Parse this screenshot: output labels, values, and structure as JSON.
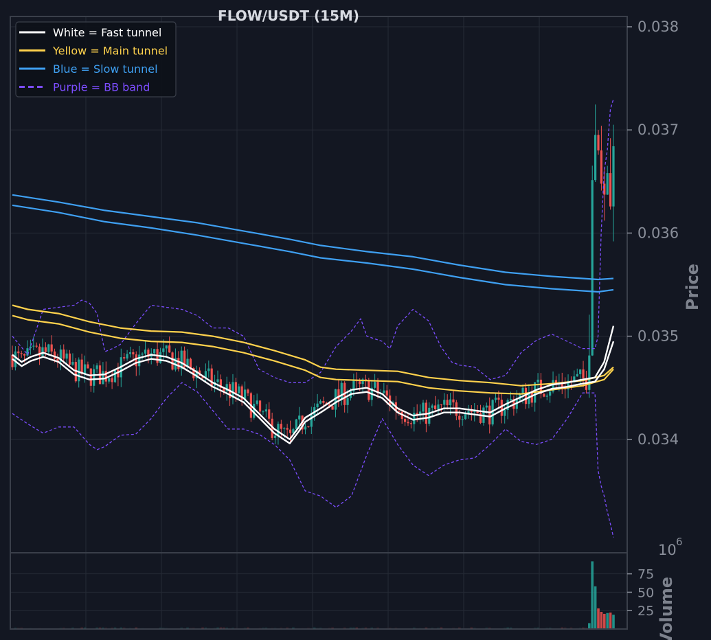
{
  "chart_data": {
    "type": "candlestick",
    "title": "FLOW/USDT (15M)",
    "ylabel": "Price",
    "volume_label": "Volume",
    "volume_exponent_base": "10",
    "volume_exponent_power": "6",
    "ylim": [
      0.0329,
      0.0381
    ],
    "volume_ylim": [
      0,
      98
    ],
    "n_bars": 200,
    "y_ticks": [
      "0.034",
      "0.035",
      "0.036",
      "0.037",
      "0.038"
    ],
    "y_tick_values": [
      0.034,
      0.035,
      0.036,
      0.037,
      0.038
    ],
    "volume_ticks": [
      "25",
      "50",
      "75"
    ],
    "volume_tick_values": [
      25,
      50,
      75
    ],
    "grid": true,
    "legend_position": "top-left",
    "legend": [
      {
        "label": "White = Fast tunnel",
        "color": "#ffffff",
        "style": "solid"
      },
      {
        "label": "Yellow = Main tunnel",
        "color": "#ffd24d",
        "style": "solid"
      },
      {
        "label": "Blue = Slow tunnel",
        "color": "#3fa0f2",
        "style": "solid"
      },
      {
        "label": "Purple = BB band",
        "color": "#7c4dff",
        "style": "dashed"
      }
    ],
    "colors": {
      "up": "#26a69a",
      "down": "#ef5350",
      "bg": "#131722",
      "grid": "#262b36",
      "frame": "#3a3f4a"
    },
    "tunnel_lines": {
      "fast": {
        "color": "#ffffff",
        "upper": [
          [
            0,
            0.03482
          ],
          [
            6,
            0.03475
          ],
          [
            12,
            0.0348
          ],
          [
            20,
            0.03484
          ],
          [
            30,
            0.03479
          ],
          [
            40,
            0.03467
          ],
          [
            50,
            0.03462
          ],
          [
            60,
            0.03463
          ],
          [
            70,
            0.0347
          ],
          [
            80,
            0.03478
          ],
          [
            90,
            0.03482
          ],
          [
            100,
            0.0348
          ],
          [
            110,
            0.03474
          ],
          [
            120,
            0.03465
          ],
          [
            130,
            0.03455
          ],
          [
            140,
            0.03448
          ],
          [
            150,
            0.0344
          ],
          [
            160,
            0.03425
          ],
          [
            170,
            0.0341
          ],
          [
            180,
            0.034
          ],
          [
            186,
            0.03412
          ],
          [
            190,
            0.03421
          ],
          [
            200,
            0.0343
          ],
          [
            210,
            0.0344
          ],
          [
            220,
            0.03448
          ],
          [
            230,
            0.0345
          ],
          [
            240,
            0.03444
          ],
          [
            250,
            0.0343
          ],
          [
            260,
            0.03423
          ],
          [
            270,
            0.03425
          ],
          [
            280,
            0.0343
          ],
          [
            290,
            0.0343
          ],
          [
            300,
            0.03428
          ],
          [
            310,
            0.03426
          ],
          [
            320,
            0.03434
          ],
          [
            330,
            0.03441
          ],
          [
            340,
            0.03448
          ],
          [
            350,
            0.03453
          ],
          [
            360,
            0.03455
          ],
          [
            370,
            0.03458
          ],
          [
            378,
            0.0346
          ],
          [
            384,
            0.03475
          ],
          [
            390,
            0.0351
          ]
        ],
        "lower": [
          [
            0,
            0.03478
          ],
          [
            6,
            0.03471
          ],
          [
            12,
            0.03476
          ],
          [
            20,
            0.0348
          ],
          [
            30,
            0.03475
          ],
          [
            40,
            0.03463
          ],
          [
            50,
            0.03458
          ],
          [
            60,
            0.03459
          ],
          [
            70,
            0.03466
          ],
          [
            80,
            0.03474
          ],
          [
            90,
            0.03478
          ],
          [
            100,
            0.03476
          ],
          [
            110,
            0.0347
          ],
          [
            120,
            0.03461
          ],
          [
            130,
            0.03451
          ],
          [
            140,
            0.03444
          ],
          [
            150,
            0.03436
          ],
          [
            160,
            0.03421
          ],
          [
            170,
            0.03406
          ],
          [
            180,
            0.03396
          ],
          [
            186,
            0.03408
          ],
          [
            190,
            0.03417
          ],
          [
            200,
            0.03426
          ],
          [
            210,
            0.03436
          ],
          [
            220,
            0.03444
          ],
          [
            230,
            0.03446
          ],
          [
            240,
            0.0344
          ],
          [
            250,
            0.03426
          ],
          [
            260,
            0.03419
          ],
          [
            270,
            0.03421
          ],
          [
            280,
            0.03426
          ],
          [
            290,
            0.03426
          ],
          [
            300,
            0.03424
          ],
          [
            310,
            0.03422
          ],
          [
            320,
            0.0343
          ],
          [
            330,
            0.03437
          ],
          [
            340,
            0.03444
          ],
          [
            350,
            0.03449
          ],
          [
            360,
            0.03451
          ],
          [
            370,
            0.03454
          ],
          [
            378,
            0.03456
          ],
          [
            384,
            0.03468
          ],
          [
            390,
            0.03495
          ]
        ]
      },
      "main": {
        "color": "#ffd24d",
        "upper": [
          [
            0,
            0.0353
          ],
          [
            10,
            0.03526
          ],
          [
            30,
            0.03522
          ],
          [
            50,
            0.03514
          ],
          [
            70,
            0.03508
          ],
          [
            90,
            0.03505
          ],
          [
            110,
            0.03504
          ],
          [
            130,
            0.035
          ],
          [
            150,
            0.03494
          ],
          [
            170,
            0.03486
          ],
          [
            190,
            0.03477
          ],
          [
            200,
            0.0347
          ],
          [
            210,
            0.03468
          ],
          [
            230,
            0.03467
          ],
          [
            250,
            0.03466
          ],
          [
            270,
            0.0346
          ],
          [
            290,
            0.03457
          ],
          [
            310,
            0.03455
          ],
          [
            330,
            0.03452
          ],
          [
            350,
            0.03454
          ],
          [
            370,
            0.03457
          ],
          [
            384,
            0.03462
          ],
          [
            390,
            0.0347
          ]
        ],
        "lower": [
          [
            0,
            0.0352
          ],
          [
            10,
            0.03516
          ],
          [
            30,
            0.03512
          ],
          [
            50,
            0.03504
          ],
          [
            70,
            0.03498
          ],
          [
            90,
            0.03495
          ],
          [
            110,
            0.03494
          ],
          [
            130,
            0.0349
          ],
          [
            150,
            0.03484
          ],
          [
            170,
            0.03476
          ],
          [
            190,
            0.03467
          ],
          [
            200,
            0.0346
          ],
          [
            210,
            0.03458
          ],
          [
            230,
            0.03457
          ],
          [
            250,
            0.03456
          ],
          [
            270,
            0.0345
          ],
          [
            290,
            0.03447
          ],
          [
            310,
            0.03445
          ],
          [
            330,
            0.03444
          ],
          [
            350,
            0.03448
          ],
          [
            370,
            0.03452
          ],
          [
            384,
            0.03458
          ],
          [
            390,
            0.03468
          ]
        ]
      },
      "slow": {
        "color": "#3fa0f2",
        "upper": [
          [
            0,
            0.03637
          ],
          [
            30,
            0.0363
          ],
          [
            60,
            0.03622
          ],
          [
            90,
            0.03616
          ],
          [
            120,
            0.0361
          ],
          [
            150,
            0.03602
          ],
          [
            180,
            0.03594
          ],
          [
            200,
            0.03588
          ],
          [
            230,
            0.03582
          ],
          [
            260,
            0.03577
          ],
          [
            290,
            0.03569
          ],
          [
            320,
            0.03562
          ],
          [
            350,
            0.03558
          ],
          [
            380,
            0.03555
          ],
          [
            390,
            0.03556
          ]
        ],
        "lower": [
          [
            0,
            0.03627
          ],
          [
            30,
            0.0362
          ],
          [
            60,
            0.03611
          ],
          [
            90,
            0.03605
          ],
          [
            120,
            0.03598
          ],
          [
            150,
            0.0359
          ],
          [
            180,
            0.03582
          ],
          [
            200,
            0.03576
          ],
          [
            230,
            0.03571
          ],
          [
            260,
            0.03565
          ],
          [
            290,
            0.03557
          ],
          [
            320,
            0.0355
          ],
          [
            350,
            0.03546
          ],
          [
            380,
            0.03543
          ],
          [
            390,
            0.03545
          ]
        ]
      },
      "bb_upper": {
        "color": "#7c4dff",
        "points": [
          [
            0,
            0.035
          ],
          [
            10,
            0.03482
          ],
          [
            20,
            0.03526
          ],
          [
            30,
            0.03528
          ],
          [
            40,
            0.0353
          ],
          [
            45,
            0.03535
          ],
          [
            50,
            0.03532
          ],
          [
            55,
            0.03522
          ],
          [
            60,
            0.03485
          ],
          [
            65,
            0.03488
          ],
          [
            70,
            0.03492
          ],
          [
            80,
            0.03512
          ],
          [
            90,
            0.0353
          ],
          [
            100,
            0.03528
          ],
          [
            110,
            0.03526
          ],
          [
            120,
            0.0352
          ],
          [
            130,
            0.03508
          ],
          [
            140,
            0.03508
          ],
          [
            150,
            0.035
          ],
          [
            160,
            0.03468
          ],
          [
            170,
            0.0346
          ],
          [
            180,
            0.03455
          ],
          [
            190,
            0.03455
          ],
          [
            200,
            0.03465
          ],
          [
            210,
            0.0349
          ],
          [
            220,
            0.03505
          ],
          [
            226,
            0.03517
          ],
          [
            230,
            0.035
          ],
          [
            240,
            0.03495
          ],
          [
            245,
            0.03488
          ],
          [
            250,
            0.0351
          ],
          [
            260,
            0.03526
          ],
          [
            270,
            0.03515
          ],
          [
            278,
            0.0349
          ],
          [
            285,
            0.03475
          ],
          [
            290,
            0.03472
          ],
          [
            300,
            0.0347
          ],
          [
            310,
            0.03458
          ],
          [
            320,
            0.03462
          ],
          [
            330,
            0.03484
          ],
          [
            340,
            0.03496
          ],
          [
            350,
            0.03502
          ],
          [
            360,
            0.03495
          ],
          [
            370,
            0.03488
          ],
          [
            378,
            0.03488
          ],
          [
            380,
            0.035
          ],
          [
            382,
            0.036
          ],
          [
            384,
            0.0366
          ],
          [
            386,
            0.0368
          ],
          [
            388,
            0.0372
          ],
          [
            390,
            0.0373
          ]
        ]
      },
      "bb_lower": {
        "color": "#7c4dff",
        "points": [
          [
            0,
            0.03425
          ],
          [
            10,
            0.03415
          ],
          [
            20,
            0.03406
          ],
          [
            30,
            0.03412
          ],
          [
            40,
            0.03412
          ],
          [
            50,
            0.03395
          ],
          [
            55,
            0.0339
          ],
          [
            60,
            0.03393
          ],
          [
            70,
            0.03404
          ],
          [
            80,
            0.03405
          ],
          [
            90,
            0.0342
          ],
          [
            100,
            0.0344
          ],
          [
            110,
            0.03455
          ],
          [
            120,
            0.03446
          ],
          [
            130,
            0.03428
          ],
          [
            140,
            0.0341
          ],
          [
            150,
            0.0341
          ],
          [
            160,
            0.03405
          ],
          [
            170,
            0.03395
          ],
          [
            180,
            0.0338
          ],
          [
            190,
            0.0335
          ],
          [
            200,
            0.03345
          ],
          [
            210,
            0.03334
          ],
          [
            220,
            0.03345
          ],
          [
            230,
            0.03385
          ],
          [
            240,
            0.0342
          ],
          [
            250,
            0.03395
          ],
          [
            260,
            0.03375
          ],
          [
            270,
            0.03365
          ],
          [
            280,
            0.03375
          ],
          [
            290,
            0.0338
          ],
          [
            300,
            0.03382
          ],
          [
            310,
            0.03395
          ],
          [
            320,
            0.0341
          ],
          [
            330,
            0.03398
          ],
          [
            340,
            0.03395
          ],
          [
            350,
            0.034
          ],
          [
            360,
            0.0342
          ],
          [
            370,
            0.03445
          ],
          [
            378,
            0.03445
          ],
          [
            380,
            0.0337
          ],
          [
            382,
            0.03355
          ],
          [
            384,
            0.03345
          ],
          [
            386,
            0.0333
          ],
          [
            388,
            0.03318
          ],
          [
            390,
            0.03305
          ]
        ]
      }
    }
  }
}
